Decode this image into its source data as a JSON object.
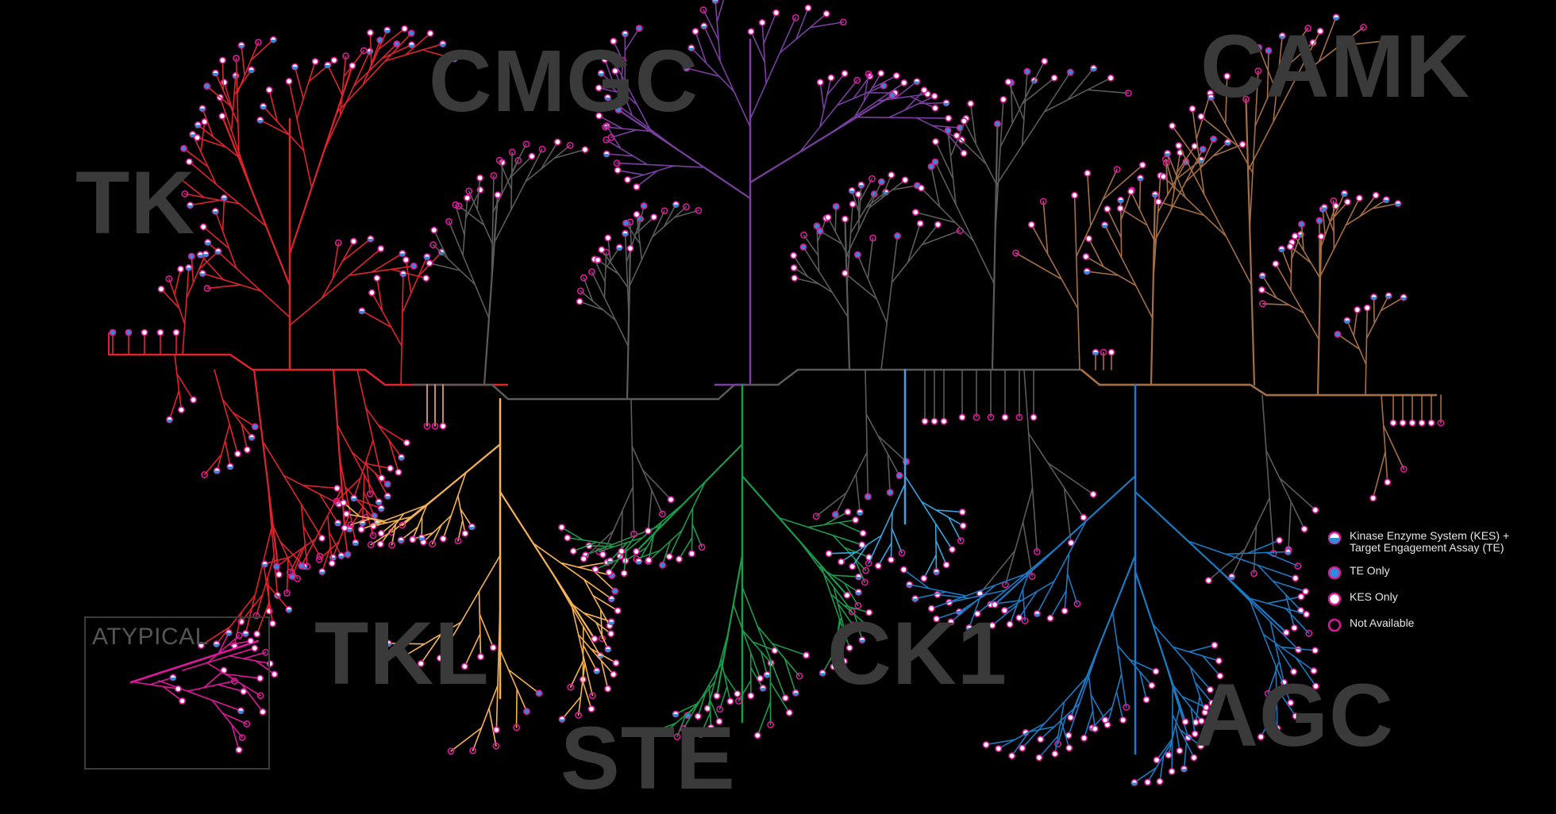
{
  "families": {
    "tk": {
      "label": "TK",
      "color": "#e0232c"
    },
    "tkl": {
      "label": "TKL",
      "color": "#f7b253"
    },
    "ste": {
      "label": "STE",
      "color": "#1c9a4c"
    },
    "ck1": {
      "label": "CK1",
      "color": "#37a6e0"
    },
    "agc": {
      "label": "AGC",
      "color": "#1b7ac4"
    },
    "camk": {
      "label": "CAMK",
      "color": "#a56e45"
    },
    "cmgc": {
      "label": "CMGC",
      "color": "#7a3fa0"
    },
    "other": {
      "label": "",
      "color": "#5b5b5b"
    },
    "atypical": {
      "label": "ATYPICAL",
      "color": "#e0179d"
    }
  },
  "label_color": "#3a3a3a",
  "legend": [
    {
      "id": "kes_te",
      "text": "Kinase Enzyme System (KES) + Target Engagement Assay (TE)",
      "icon": "half-filled-circle-icon"
    },
    {
      "id": "te_only",
      "text": "TE Only",
      "icon": "blue-filled-circle-icon"
    },
    {
      "id": "kes_only",
      "text": "KES Only",
      "icon": "white-filled-circle-icon"
    },
    {
      "id": "not_available",
      "text": "Not Available",
      "icon": "empty-circle-icon"
    }
  ],
  "status_colors": {
    "te": "#2a8fd6",
    "kes": "#ffffff",
    "outline": "#e0179d"
  }
}
